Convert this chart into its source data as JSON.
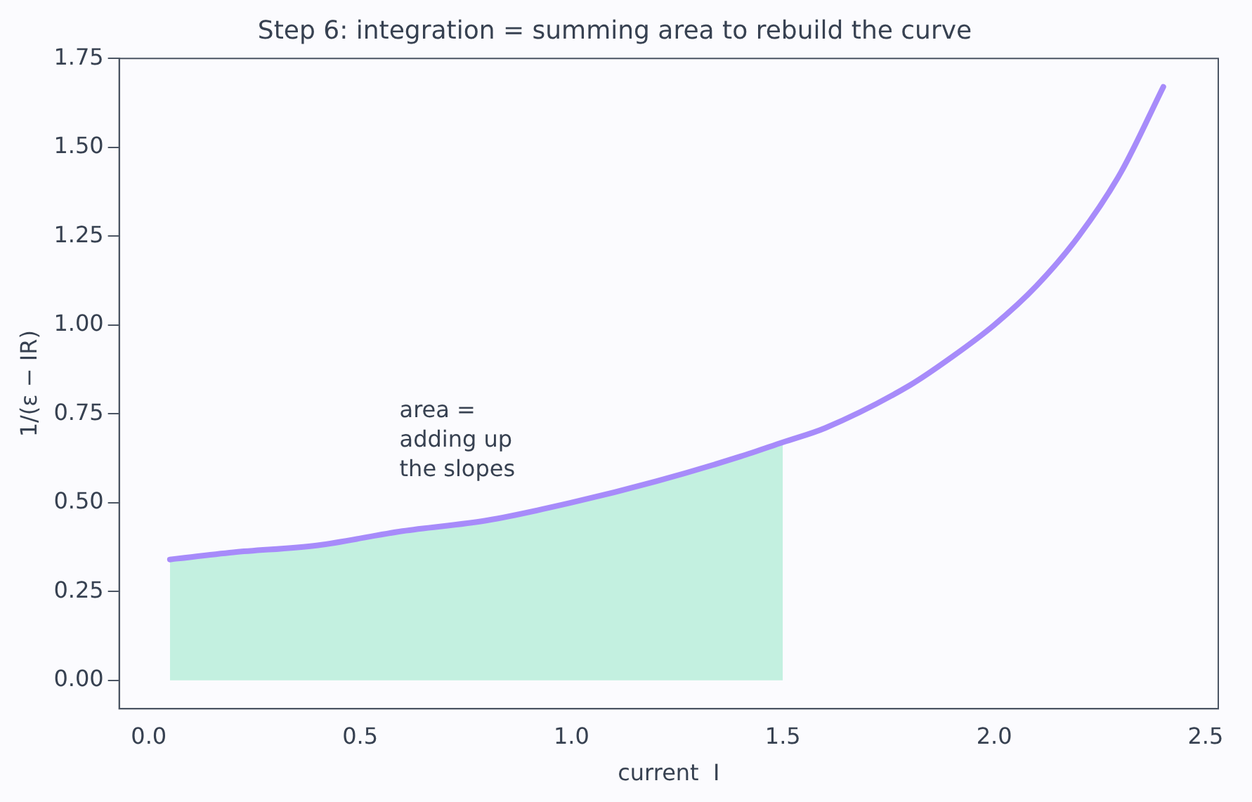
{
  "chart_data": {
    "type": "line",
    "title": "Step 6: integration = summing area to rebuild the curve",
    "xlabel": "current  I",
    "ylabel": "1/(ε − IR)",
    "series": [
      {
        "type": "area",
        "color": "#c3f0e0",
        "x": [
          0.05,
          0.2,
          0.4,
          0.6,
          0.8,
          1.0,
          1.2,
          1.4,
          1.5
        ],
        "values": [
          0.34,
          0.36,
          0.38,
          0.42,
          0.45,
          0.5,
          0.56,
          0.63,
          0.67
        ]
      },
      {
        "color": "#a78bfa",
        "x": [
          0.05,
          0.2,
          0.4,
          0.6,
          0.8,
          1.0,
          1.2,
          1.4,
          1.5,
          1.6,
          1.8,
          1.9,
          2.0,
          2.1,
          2.2,
          2.3,
          2.4
        ],
        "values": [
          0.34,
          0.36,
          0.38,
          0.42,
          0.45,
          0.5,
          0.56,
          0.63,
          0.67,
          0.71,
          0.83,
          0.91,
          1.0,
          1.11,
          1.25,
          1.43,
          1.67
        ]
      }
    ],
    "annotations": [
      "area =\nadding up\nthe slopes"
    ],
    "xlim": [
      -0.07,
      2.53
    ],
    "xticks": [
      {
        "value": 0,
        "label": "0.0"
      },
      0.5,
      {
        "value": 1,
        "label": "1.0"
      },
      1.5,
      {
        "value": 2,
        "label": "2.0"
      },
      2.5
    ],
    "ylim": [
      -0.08,
      1.75
    ],
    "yticks": [
      {
        "value": 0,
        "label": "0.00"
      },
      0.25,
      {
        "value": 0.5,
        "label": "0.50"
      },
      0.75,
      {
        "value": 1,
        "label": "1.00"
      },
      1.25,
      {
        "value": 1.5,
        "label": "1.50"
      },
      1.75
    ],
    "grid": false,
    "legend": false,
    "marker": "none",
    "line_style": "solid"
  }
}
